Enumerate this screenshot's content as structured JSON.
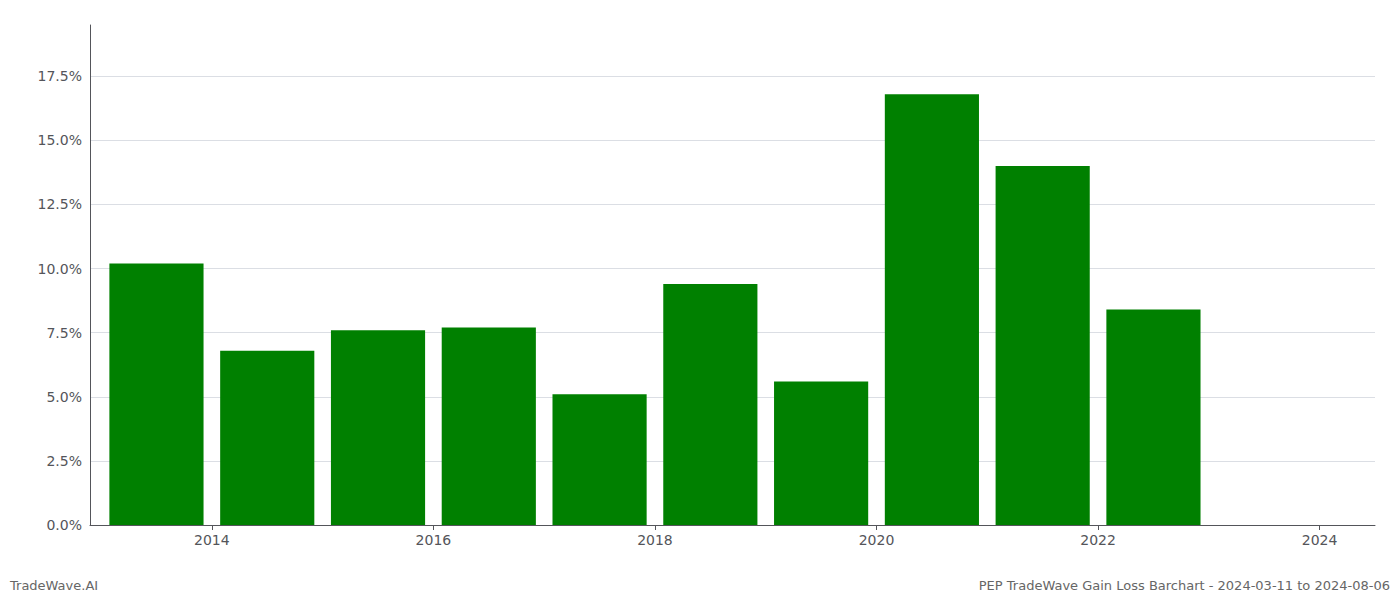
{
  "chart_data": {
    "type": "bar",
    "x": [
      2014,
      2015,
      2016,
      2017,
      2018,
      2019,
      2020,
      2021,
      2022,
      2023
    ],
    "values": [
      0.102,
      0.068,
      0.076,
      0.077,
      0.051,
      0.094,
      0.056,
      0.168,
      0.14,
      0.084
    ],
    "color": "#008000",
    "xlim": [
      2013.4,
      2025.0
    ],
    "xticks": [
      {
        "value": 2014.5,
        "label": "2014"
      },
      {
        "value": 2016.5,
        "label": "2016"
      },
      {
        "value": 2018.5,
        "label": "2018"
      },
      {
        "value": 2020.5,
        "label": "2020"
      },
      {
        "value": 2022.5,
        "label": "2022"
      },
      {
        "value": 2024.5,
        "label": "2024"
      }
    ],
    "ylim": [
      0,
      0.195
    ],
    "yticks": [
      {
        "value": 0.0,
        "label": "0.0%"
      },
      {
        "value": 0.025,
        "label": "2.5%"
      },
      {
        "value": 0.05,
        "label": "5.0%"
      },
      {
        "value": 0.075,
        "label": "7.5%"
      },
      {
        "value": 0.1,
        "label": "10.0%"
      },
      {
        "value": 0.125,
        "label": "12.5%"
      },
      {
        "value": 0.15,
        "label": "15.0%"
      },
      {
        "value": 0.175,
        "label": "17.5%"
      }
    ],
    "grid": true,
    "annotations": [
      "TradeWave.AI",
      "PEP TradeWave Gain Loss Barchart - 2024-03-11 to 2024-08-06"
    ]
  }
}
